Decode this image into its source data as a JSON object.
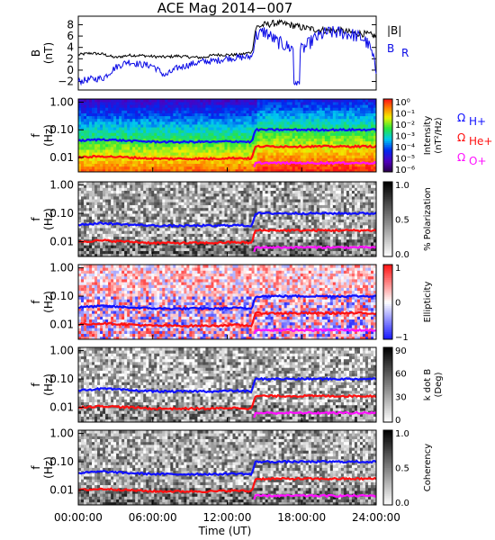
{
  "title": "ACE Mag 2014−007",
  "xaxis": {
    "label": "Time (UT)",
    "ticks": [
      "00:00:00",
      "06:00:00",
      "12:00:00",
      "18:00:00",
      "24:00:00"
    ],
    "range_hours": [
      0,
      24
    ]
  },
  "freq_axis": {
    "label_top": "f",
    "label_bottom": "(Hz)",
    "ticks": [
      "1.00",
      "0.10",
      "0.01"
    ],
    "tick_values": [
      1.0,
      0.1,
      0.01
    ],
    "log_range": [
      0.003,
      1.3
    ],
    "scale": "log"
  },
  "legend_B": {
    "total": "|B|",
    "radial": "B",
    "radial_sub": "R"
  },
  "legend_gyro": [
    {
      "sym": "Ω",
      "sub": "H+",
      "color": "#1010ff"
    },
    {
      "sym": "Ω",
      "sub": "He+",
      "color": "#ff1010"
    },
    {
      "sym": "Ω",
      "sub": "O+",
      "color": "#ff10ff"
    }
  ],
  "colors": {
    "B_total": "#000000",
    "B_R": "#0a0ae6",
    "H_plus": "#1010ff",
    "He_plus": "#ff1010",
    "O_plus": "#ff10ff"
  },
  "chart_data": {
    "type": "line",
    "title": "ACE Mag 2014−007",
    "panels": [
      {
        "id": "B-field",
        "ylabel": [
          "B",
          "(nT)"
        ],
        "yticks": [
          -2,
          0,
          2,
          4,
          6,
          8
        ],
        "ylim": [
          -3.5,
          9.5
        ],
        "x_hours": [
          0,
          1,
          2,
          3,
          4,
          5,
          6,
          7,
          8,
          9,
          10,
          11,
          12,
          13,
          14,
          14.3,
          15,
          16,
          17,
          18,
          19,
          20,
          21,
          22,
          23,
          23.5,
          24
        ],
        "series": [
          {
            "name": "|B|",
            "values": [
              2.7,
              3.0,
              2.8,
              2.2,
              2.6,
              2.6,
              2.4,
              2.3,
              2.5,
              2.3,
              2.2,
              2.7,
              2.7,
              2.7,
              3.2,
              7.5,
              8.0,
              8.3,
              8.0,
              7.5,
              7.2,
              7.0,
              7.0,
              6.6,
              6.4,
              6.2,
              6.0
            ]
          },
          {
            "name": "B_R",
            "values": [
              -2.0,
              -1.6,
              -1.4,
              0.5,
              1.5,
              1.0,
              0.8,
              -1.0,
              0.4,
              1.0,
              1.5,
              1.6,
              2.1,
              2.2,
              2.4,
              6.0,
              6.8,
              5.0,
              4.0,
              3.5,
              5.5,
              6.6,
              6.6,
              6.3,
              5.5,
              4.0,
              0.0
            ]
          }
        ]
      },
      {
        "id": "intensity",
        "kind": "spectrogram",
        "colorbar": {
          "label": [
            "Intensity",
            "(nT²/Hz)"
          ],
          "ticks": [
            "10⁰",
            "10⁻¹",
            "10⁻²",
            "10⁻³",
            "10⁻⁴",
            "10⁻⁵",
            "10⁻⁶"
          ],
          "range": [
            1e-06,
            1
          ],
          "scale": "log",
          "palette": "rainbow"
        }
      },
      {
        "id": "polarization",
        "kind": "spectrogram",
        "colorbar": {
          "label": [
            "% Polarization"
          ],
          "ticks": [
            "1.0",
            "0.5",
            "0.0"
          ],
          "range": [
            0,
            1
          ],
          "palette": "gray"
        }
      },
      {
        "id": "ellipticity",
        "kind": "spectrogram",
        "colorbar": {
          "label": [
            "Ellipticity"
          ],
          "ticks": [
            "1",
            "0",
            "−1"
          ],
          "range": [
            -1,
            1
          ],
          "palette": "blue-white-red"
        }
      },
      {
        "id": "k-dot-b",
        "kind": "spectrogram",
        "colorbar": {
          "label": [
            "k dot B",
            "(Deg)"
          ],
          "ticks": [
            "90",
            "60",
            "30",
            "0"
          ],
          "range": [
            0,
            90
          ],
          "palette": "gray"
        }
      },
      {
        "id": "coherency",
        "kind": "spectrogram",
        "colorbar": {
          "label": [
            "Coherency"
          ],
          "ticks": [
            "1.0",
            "0.5",
            "0.0"
          ],
          "range": [
            0,
            1
          ],
          "palette": "gray"
        }
      }
    ],
    "gyrofrequency_lines_hz": {
      "x_hours": [
        0,
        2,
        4,
        6,
        8,
        10,
        11,
        12,
        13,
        14,
        14.3,
        16,
        18,
        20,
        22,
        24
      ],
      "H_plus": [
        0.04,
        0.045,
        0.04,
        0.037,
        0.036,
        0.037,
        0.036,
        0.038,
        0.038,
        0.036,
        0.1,
        0.1,
        0.1,
        0.1,
        0.1,
        0.1
      ],
      "He_plus": [
        0.01,
        0.011,
        0.01,
        0.009,
        0.009,
        0.009,
        0.009,
        0.0095,
        0.0095,
        0.009,
        0.025,
        0.025,
        0.025,
        0.025,
        0.025,
        0.025
      ],
      "O_plus": [
        0.0025,
        0.0028,
        0.0025,
        0.0023,
        0.0023,
        0.0023,
        0.0023,
        0.0024,
        0.0024,
        0.0023,
        0.0063,
        0.0063,
        0.0063,
        0.0063,
        0.0063,
        0.0063
      ]
    }
  }
}
